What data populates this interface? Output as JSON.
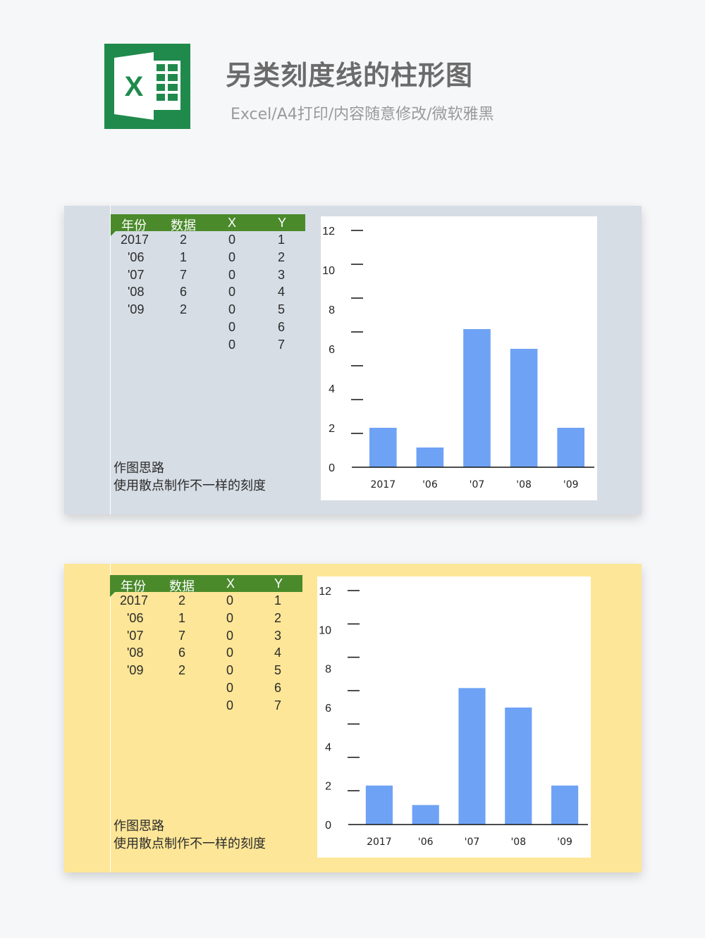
{
  "header": {
    "logo_letter": "X",
    "title": "另类刻度线的柱形图",
    "subtitle": "Excel/A4打印/内容随意修改/微软雅黑"
  },
  "colors": {
    "panel1_bg": "#d6dde5",
    "panel2_bg": "#fde697",
    "table_header": "#4a8a2b",
    "bar": "#6ea2f5",
    "logo_green": "#1f8a4c"
  },
  "table": {
    "headers": [
      "年份",
      "数据",
      "X",
      "Y"
    ],
    "rows": [
      [
        "2017",
        "2",
        "0",
        "1"
      ],
      [
        "'06",
        "1",
        "0",
        "2"
      ],
      [
        "'07",
        "7",
        "0",
        "3"
      ],
      [
        "'08",
        "6",
        "0",
        "4"
      ],
      [
        "'09",
        "2",
        "0",
        "5"
      ],
      [
        "",
        "",
        "0",
        "6"
      ],
      [
        "",
        "",
        "0",
        "7"
      ]
    ]
  },
  "notes": {
    "line1": "作图思路",
    "line2": "使用散点制作不一样的刻度"
  },
  "chart_data": {
    "type": "bar",
    "categories": [
      "2017",
      "'06",
      "'07",
      "'08",
      "'09"
    ],
    "values": [
      2,
      1,
      7,
      6,
      2
    ],
    "y_ticks": [
      "0",
      "2",
      "4",
      "6",
      "8",
      "10",
      "12"
    ],
    "ylim": [
      0,
      12
    ],
    "tick_marks": [
      1,
      2,
      3,
      4,
      5,
      6,
      7
    ],
    "grid": false,
    "legend": "none"
  }
}
